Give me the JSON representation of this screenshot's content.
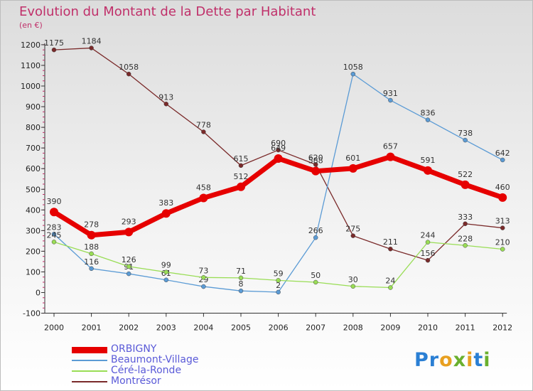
{
  "chart_data": {
    "type": "line",
    "title": "Evolution du Montant de la Dette par Habitant",
    "unit": "(en €)",
    "x": [
      "2000",
      "2001",
      "2002",
      "2003",
      "2004",
      "2005",
      "2006",
      "2007",
      "2008",
      "2009",
      "2010",
      "2011",
      "2012"
    ],
    "ylim": [
      -100,
      1200
    ],
    "yticks": [
      -100,
      0,
      100,
      200,
      300,
      400,
      500,
      600,
      700,
      800,
      900,
      1000,
      1100,
      1200
    ],
    "grid": false,
    "legend_position": "bottom-left",
    "series": [
      {
        "name": "ORBIGNY",
        "color": "#e60000",
        "values": [
          390,
          278,
          293,
          383,
          458,
          512,
          649,
          588,
          601,
          657,
          591,
          522,
          460
        ]
      },
      {
        "name": "Beaumont-Village",
        "color": "#5b9bd5",
        "values": [
          283,
          116,
          91,
          61,
          29,
          8,
          2,
          266,
          1058,
          931,
          836,
          738,
          642
        ]
      },
      {
        "name": "Céré-la-Ronde",
        "color": "#99dd55",
        "values": [
          245,
          188,
          126,
          99,
          73,
          71,
          59,
          50,
          30,
          24,
          244,
          228,
          210
        ]
      },
      {
        "name": "Montrésor",
        "color": "#7a2a2a",
        "values": [
          1175,
          1184,
          1058,
          913,
          778,
          615,
          690,
          620,
          275,
          211,
          156,
          333,
          313
        ]
      }
    ]
  },
  "logo": {
    "text": "Proxiti"
  },
  "colors": {
    "title": "#c0306a",
    "legend_text": "#5a5ad8"
  }
}
